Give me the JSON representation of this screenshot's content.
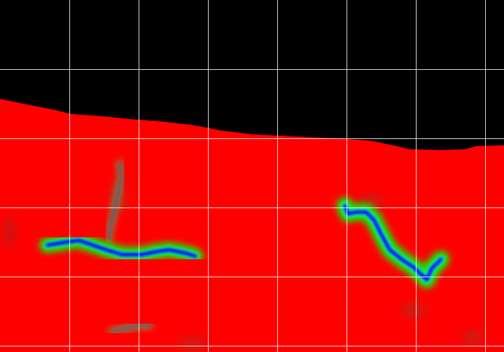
{
  "image": {
    "kind": "heatmap-overlay-with-grid",
    "colors": {
      "background": "#000000",
      "field": "#ff0000",
      "glow": "#00ff00",
      "core": "#0000ff",
      "grid": "#ffffff"
    },
    "grid": true
  }
}
